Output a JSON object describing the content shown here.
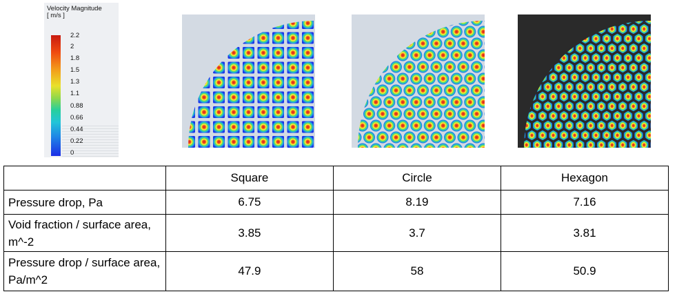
{
  "legend": {
    "title": "Velocity Magnitude",
    "unit": "[ m/s ]",
    "ticks": [
      "2.2",
      "2",
      "1.8",
      "1.5",
      "1.3",
      "1.1",
      "0.88",
      "0.66",
      "0.44",
      "0.22",
      "0"
    ]
  },
  "images": [
    {
      "shape": "square",
      "background": "light"
    },
    {
      "shape": "circle",
      "background": "light"
    },
    {
      "shape": "hexagon",
      "background": "dark"
    }
  ],
  "table": {
    "columns": [
      "",
      "Square",
      "Circle",
      "Hexagon"
    ],
    "rows": [
      {
        "label": "Pressure drop, Pa",
        "values": [
          "6.75",
          "8.19",
          "7.16"
        ]
      },
      {
        "label": "Void fraction / surface area, m^-2",
        "values": [
          "3.85",
          "3.7",
          "3.81"
        ]
      },
      {
        "label": "Pressure drop / surface area, Pa/m^2",
        "values": [
          "47.9",
          "58",
          "50.9"
        ]
      }
    ]
  },
  "colors": {
    "velocity_high": "#d7191c",
    "velocity_mid": "#ffff33",
    "velocity_low": "#1a35e8",
    "panel_light_bg": "#d3dae3",
    "panel_dark_bg": "#2a2a2a"
  }
}
